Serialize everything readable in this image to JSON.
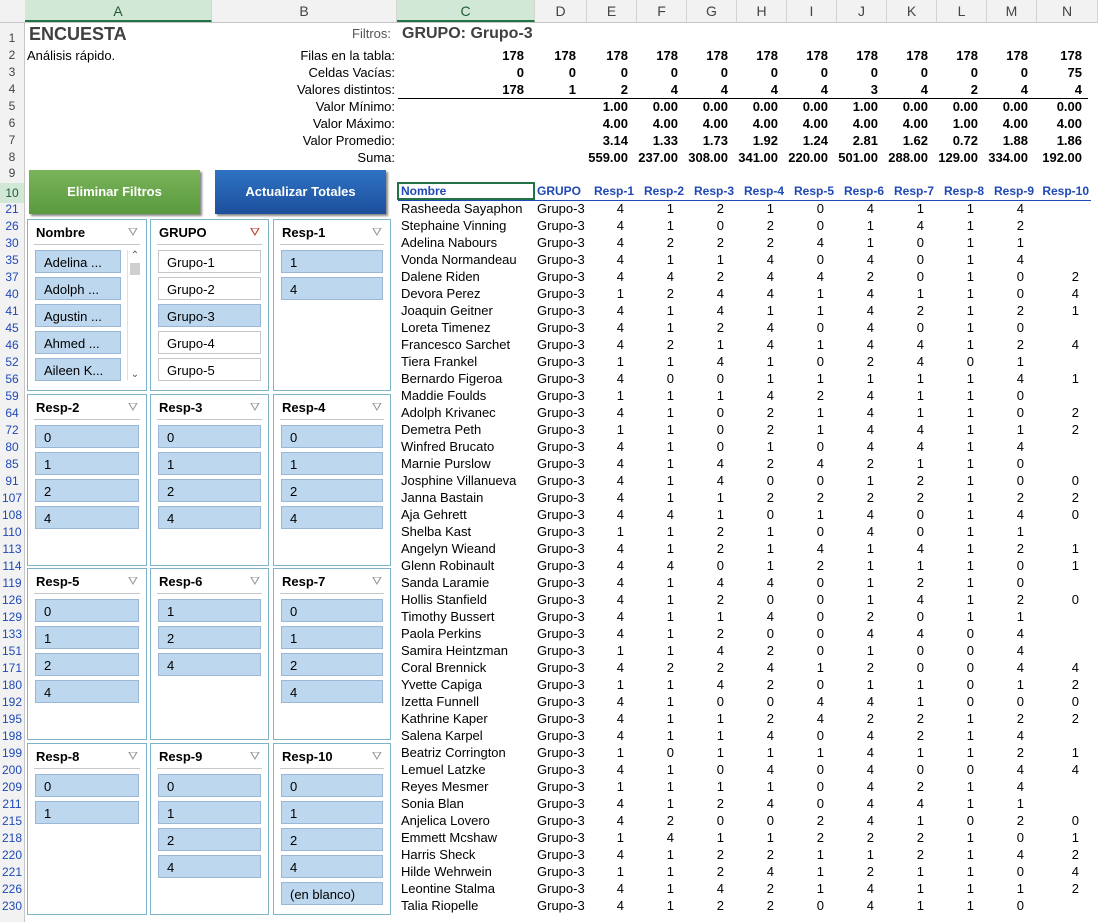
{
  "columns": [
    "A",
    "B",
    "C",
    "D",
    "E",
    "F",
    "G",
    "H",
    "I",
    "J",
    "K",
    "L",
    "M",
    "N"
  ],
  "summary": {
    "title": "ENCUESTA",
    "subtitle": "Análisis rápido.",
    "filters_label": "Filtros:",
    "group_title": "GRUPO: Grupo-3",
    "labels": [
      "Filas en la tabla:",
      "Celdas Vacías:",
      "Valores distintos:",
      "Valor Mínimo:",
      "Valor Máximo:",
      "Valor Promedio:",
      "Suma:"
    ],
    "values": [
      [
        "178",
        "178",
        "178",
        "178",
        "178",
        "178",
        "178",
        "178",
        "178",
        "178",
        "178",
        "178"
      ],
      [
        "0",
        "0",
        "0",
        "0",
        "0",
        "0",
        "0",
        "0",
        "0",
        "0",
        "0",
        "75"
      ],
      [
        "178",
        "1",
        "2",
        "4",
        "4",
        "4",
        "4",
        "3",
        "4",
        "2",
        "4",
        "4"
      ],
      [
        "",
        "",
        "1.00",
        "0.00",
        "0.00",
        "0.00",
        "0.00",
        "1.00",
        "0.00",
        "0.00",
        "0.00",
        "0.00"
      ],
      [
        "",
        "",
        "4.00",
        "4.00",
        "4.00",
        "4.00",
        "4.00",
        "4.00",
        "4.00",
        "1.00",
        "4.00",
        "4.00"
      ],
      [
        "",
        "",
        "3.14",
        "1.33",
        "1.73",
        "1.92",
        "1.24",
        "2.81",
        "1.62",
        "0.72",
        "1.88",
        "1.86"
      ],
      [
        "",
        "",
        "559.00",
        "237.00",
        "308.00",
        "341.00",
        "220.00",
        "501.00",
        "288.00",
        "129.00",
        "334.00",
        "192.00"
      ]
    ]
  },
  "buttons": {
    "clear": "Eliminar Filtros",
    "refresh": "Actualizar Totales"
  },
  "slicers": [
    {
      "title": "Nombre",
      "items": [
        "Adelina ...",
        "Adolph ...",
        "Agustin ...",
        "Ahmed ...",
        "Aileen K..."
      ],
      "off": []
    },
    {
      "title": "GRUPO",
      "items": [
        "Grupo-1",
        "Grupo-2",
        "Grupo-3",
        "Grupo-4",
        "Grupo-5"
      ],
      "off": [
        0,
        1,
        3,
        4
      ]
    },
    {
      "title": "Resp-1",
      "items": [
        "1",
        "4"
      ],
      "off": []
    },
    {
      "title": "Resp-2",
      "items": [
        "0",
        "1",
        "2",
        "4"
      ],
      "off": []
    },
    {
      "title": "Resp-3",
      "items": [
        "0",
        "1",
        "2",
        "4"
      ],
      "off": []
    },
    {
      "title": "Resp-4",
      "items": [
        "0",
        "1",
        "2",
        "4"
      ],
      "off": []
    },
    {
      "title": "Resp-5",
      "items": [
        "0",
        "1",
        "2",
        "4"
      ],
      "off": []
    },
    {
      "title": "Resp-6",
      "items": [
        "1",
        "2",
        "4"
      ],
      "off": []
    },
    {
      "title": "Resp-7",
      "items": [
        "0",
        "1",
        "2",
        "4"
      ],
      "off": []
    },
    {
      "title": "Resp-8",
      "items": [
        "0",
        "1"
      ],
      "off": []
    },
    {
      "title": "Resp-9",
      "items": [
        "0",
        "1",
        "2",
        "4"
      ],
      "off": []
    },
    {
      "title": "Resp-10",
      "items": [
        "0",
        "1",
        "2",
        "4",
        "(en blanco)"
      ],
      "off": []
    }
  ],
  "table": {
    "headers": [
      "Nombre",
      "GRUPO",
      "Resp-1",
      "Resp-2",
      "Resp-3",
      "Resp-4",
      "Resp-5",
      "Resp-6",
      "Resp-7",
      "Resp-8",
      "Resp-9",
      "Resp-10"
    ],
    "rows": [
      [
        "21",
        "Rasheeda Sayaphon",
        "Grupo-3",
        "4",
        "1",
        "2",
        "1",
        "0",
        "4",
        "1",
        "1",
        "4",
        ""
      ],
      [
        "26",
        "Stephaine Vinning",
        "Grupo-3",
        "4",
        "1",
        "0",
        "2",
        "0",
        "1",
        "4",
        "1",
        "2",
        ""
      ],
      [
        "30",
        "Adelina Nabours",
        "Grupo-3",
        "4",
        "2",
        "2",
        "2",
        "4",
        "1",
        "0",
        "1",
        "1",
        ""
      ],
      [
        "35",
        "Vonda Normandeau",
        "Grupo-3",
        "4",
        "1",
        "1",
        "4",
        "0",
        "4",
        "0",
        "1",
        "4",
        ""
      ],
      [
        "37",
        "Dalene Riden",
        "Grupo-3",
        "4",
        "4",
        "2",
        "4",
        "4",
        "2",
        "0",
        "1",
        "0",
        "2"
      ],
      [
        "40",
        "Devora Perez",
        "Grupo-3",
        "1",
        "2",
        "4",
        "4",
        "1",
        "4",
        "1",
        "1",
        "0",
        "4"
      ],
      [
        "41",
        "Joaquin Geitner",
        "Grupo-3",
        "4",
        "1",
        "4",
        "1",
        "1",
        "4",
        "2",
        "1",
        "2",
        "1"
      ],
      [
        "45",
        "Loreta Timenez",
        "Grupo-3",
        "4",
        "1",
        "2",
        "4",
        "0",
        "4",
        "0",
        "1",
        "0",
        ""
      ],
      [
        "46",
        "Francesco Sarchet",
        "Grupo-3",
        "4",
        "2",
        "1",
        "4",
        "1",
        "4",
        "4",
        "1",
        "2",
        "4"
      ],
      [
        "52",
        "Tiera Frankel",
        "Grupo-3",
        "1",
        "1",
        "4",
        "1",
        "0",
        "2",
        "4",
        "0",
        "1",
        ""
      ],
      [
        "56",
        "Bernardo Figeroa",
        "Grupo-3",
        "4",
        "0",
        "0",
        "1",
        "1",
        "1",
        "1",
        "1",
        "4",
        "1"
      ],
      [
        "59",
        "Maddie Foulds",
        "Grupo-3",
        "1",
        "1",
        "1",
        "4",
        "2",
        "4",
        "1",
        "1",
        "0",
        ""
      ],
      [
        "64",
        "Adolph Krivanec",
        "Grupo-3",
        "4",
        "1",
        "0",
        "2",
        "1",
        "4",
        "1",
        "1",
        "0",
        "2"
      ],
      [
        "72",
        "Demetra Peth",
        "Grupo-3",
        "1",
        "1",
        "0",
        "2",
        "1",
        "4",
        "4",
        "1",
        "1",
        "2"
      ],
      [
        "80",
        "Winfred Brucato",
        "Grupo-3",
        "4",
        "1",
        "0",
        "1",
        "0",
        "4",
        "4",
        "1",
        "4",
        ""
      ],
      [
        "85",
        "Marnie Purslow",
        "Grupo-3",
        "4",
        "1",
        "4",
        "2",
        "4",
        "2",
        "1",
        "1",
        "0",
        ""
      ],
      [
        "91",
        "Josphine Villanueva",
        "Grupo-3",
        "4",
        "1",
        "4",
        "0",
        "0",
        "1",
        "2",
        "1",
        "0",
        "0"
      ],
      [
        "107",
        "Janna Bastain",
        "Grupo-3",
        "4",
        "1",
        "1",
        "2",
        "2",
        "2",
        "2",
        "1",
        "2",
        "2"
      ],
      [
        "108",
        "Aja Gehrett",
        "Grupo-3",
        "4",
        "4",
        "1",
        "0",
        "1",
        "4",
        "0",
        "1",
        "4",
        "0"
      ],
      [
        "110",
        "Shelba Kast",
        "Grupo-3",
        "1",
        "1",
        "2",
        "1",
        "0",
        "4",
        "0",
        "1",
        "1",
        ""
      ],
      [
        "113",
        "Angelyn Wieand",
        "Grupo-3",
        "4",
        "1",
        "2",
        "1",
        "4",
        "1",
        "4",
        "1",
        "2",
        "1"
      ],
      [
        "114",
        "Glenn Robinault",
        "Grupo-3",
        "4",
        "4",
        "0",
        "1",
        "2",
        "1",
        "1",
        "1",
        "0",
        "1"
      ],
      [
        "119",
        "Sanda Laramie",
        "Grupo-3",
        "4",
        "1",
        "4",
        "4",
        "0",
        "1",
        "2",
        "1",
        "0",
        ""
      ],
      [
        "126",
        "Hollis Stanfield",
        "Grupo-3",
        "4",
        "1",
        "2",
        "0",
        "0",
        "1",
        "4",
        "1",
        "2",
        "0"
      ],
      [
        "129",
        "Timothy Bussert",
        "Grupo-3",
        "4",
        "1",
        "1",
        "4",
        "0",
        "2",
        "0",
        "1",
        "1",
        ""
      ],
      [
        "133",
        "Paola Perkins",
        "Grupo-3",
        "4",
        "1",
        "2",
        "0",
        "0",
        "4",
        "4",
        "0",
        "4",
        ""
      ],
      [
        "151",
        "Samira Heintzman",
        "Grupo-3",
        "1",
        "1",
        "4",
        "2",
        "0",
        "1",
        "0",
        "0",
        "4",
        ""
      ],
      [
        "171",
        "Coral Brennick",
        "Grupo-3",
        "4",
        "2",
        "2",
        "4",
        "1",
        "2",
        "0",
        "0",
        "4",
        "4"
      ],
      [
        "180",
        "Yvette Capiga",
        "Grupo-3",
        "1",
        "1",
        "4",
        "2",
        "0",
        "1",
        "1",
        "0",
        "1",
        "2"
      ],
      [
        "192",
        "Izetta Funnell",
        "Grupo-3",
        "4",
        "1",
        "0",
        "0",
        "4",
        "4",
        "1",
        "0",
        "0",
        "0"
      ],
      [
        "195",
        "Kathrine Kaper",
        "Grupo-3",
        "4",
        "1",
        "1",
        "2",
        "4",
        "2",
        "2",
        "1",
        "2",
        "2"
      ],
      [
        "198",
        "Salena Karpel",
        "Grupo-3",
        "4",
        "1",
        "1",
        "4",
        "0",
        "4",
        "2",
        "1",
        "4",
        ""
      ],
      [
        "199",
        "Beatriz Corrington",
        "Grupo-3",
        "1",
        "0",
        "1",
        "1",
        "1",
        "4",
        "1",
        "1",
        "2",
        "1"
      ],
      [
        "200",
        "Lemuel Latzke",
        "Grupo-3",
        "4",
        "1",
        "0",
        "4",
        "0",
        "4",
        "0",
        "0",
        "4",
        "4"
      ],
      [
        "209",
        "Reyes Mesmer",
        "Grupo-3",
        "1",
        "1",
        "1",
        "1",
        "0",
        "4",
        "2",
        "1",
        "4",
        ""
      ],
      [
        "211",
        "Sonia Blan",
        "Grupo-3",
        "4",
        "1",
        "2",
        "4",
        "0",
        "4",
        "4",
        "1",
        "1",
        ""
      ],
      [
        "215",
        "Anjelica Lovero",
        "Grupo-3",
        "4",
        "2",
        "0",
        "0",
        "2",
        "4",
        "1",
        "0",
        "2",
        "0"
      ],
      [
        "218",
        "Emmett Mcshaw",
        "Grupo-3",
        "1",
        "4",
        "1",
        "1",
        "2",
        "2",
        "2",
        "1",
        "0",
        "1"
      ],
      [
        "220",
        "Harris Sheck",
        "Grupo-3",
        "4",
        "1",
        "2",
        "2",
        "1",
        "1",
        "2",
        "1",
        "4",
        "2"
      ],
      [
        "221",
        "Hilde Wehrwein",
        "Grupo-3",
        "1",
        "1",
        "2",
        "4",
        "1",
        "2",
        "1",
        "1",
        "0",
        "4"
      ],
      [
        "226",
        "Leontine Stalma",
        "Grupo-3",
        "4",
        "1",
        "4",
        "2",
        "1",
        "4",
        "1",
        "1",
        "1",
        "2"
      ],
      [
        "230",
        "Talia Riopelle",
        "Grupo-3",
        "4",
        "1",
        "2",
        "2",
        "0",
        "4",
        "1",
        "1",
        "0",
        ""
      ]
    ]
  }
}
